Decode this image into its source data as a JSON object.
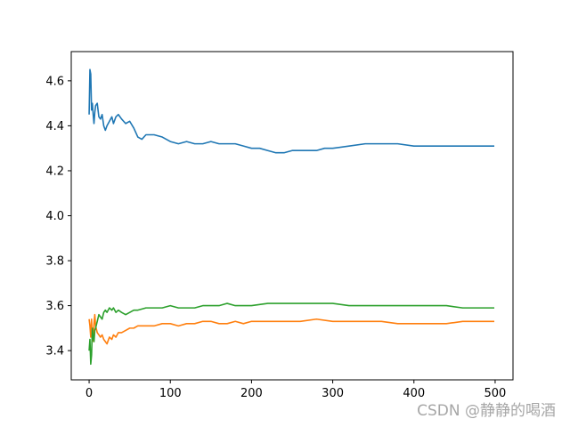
{
  "chart_data": {
    "type": "line",
    "title": "",
    "xlabel": "",
    "ylabel": "",
    "xlim": [
      -22,
      522
    ],
    "ylim": [
      3.27,
      4.73
    ],
    "xticks": [
      0,
      100,
      200,
      300,
      400,
      500
    ],
    "yticks": [
      3.4,
      3.6,
      3.8,
      4.0,
      4.2,
      4.4,
      4.6
    ],
    "xtick_labels": [
      "0",
      "100",
      "200",
      "300",
      "400",
      "500"
    ],
    "ytick_labels": [
      "3.4",
      "3.6",
      "3.8",
      "4.0",
      "4.2",
      "4.4",
      "4.6"
    ],
    "grid": false,
    "legend": "none",
    "series": [
      {
        "color": "#1f77b4",
        "x": [
          0,
          1,
          2,
          3,
          4,
          5,
          6,
          7,
          8,
          10,
          12,
          14,
          16,
          18,
          20,
          22,
          25,
          28,
          30,
          33,
          36,
          40,
          45,
          50,
          55,
          60,
          65,
          70,
          80,
          90,
          100,
          110,
          120,
          130,
          140,
          150,
          160,
          170,
          180,
          190,
          200,
          210,
          220,
          230,
          240,
          250,
          260,
          270,
          280,
          290,
          300,
          320,
          340,
          360,
          380,
          400,
          420,
          440,
          460,
          480,
          499
        ],
        "y": [
          4.45,
          4.65,
          4.63,
          4.47,
          4.5,
          4.45,
          4.41,
          4.46,
          4.49,
          4.5,
          4.44,
          4.43,
          4.45,
          4.4,
          4.38,
          4.4,
          4.42,
          4.44,
          4.41,
          4.44,
          4.45,
          4.43,
          4.41,
          4.42,
          4.39,
          4.35,
          4.34,
          4.36,
          4.36,
          4.35,
          4.33,
          4.32,
          4.33,
          4.32,
          4.32,
          4.33,
          4.32,
          4.32,
          4.32,
          4.31,
          4.3,
          4.3,
          4.29,
          4.28,
          4.28,
          4.29,
          4.29,
          4.29,
          4.29,
          4.3,
          4.3,
          4.31,
          4.32,
          4.32,
          4.32,
          4.31,
          4.31,
          4.31,
          4.31,
          4.31,
          4.31
        ]
      },
      {
        "color": "#ff7f0e",
        "x": [
          0,
          1,
          2,
          3,
          4,
          5,
          6,
          7,
          8,
          10,
          12,
          14,
          16,
          18,
          20,
          22,
          25,
          28,
          30,
          33,
          36,
          40,
          45,
          50,
          55,
          60,
          70,
          80,
          90,
          100,
          110,
          120,
          130,
          140,
          150,
          160,
          170,
          180,
          190,
          200,
          220,
          240,
          260,
          280,
          300,
          320,
          340,
          360,
          380,
          400,
          420,
          440,
          460,
          480,
          499
        ],
        "y": [
          3.54,
          3.51,
          3.46,
          3.54,
          3.44,
          3.45,
          3.52,
          3.56,
          3.51,
          3.48,
          3.47,
          3.46,
          3.47,
          3.45,
          3.44,
          3.43,
          3.46,
          3.45,
          3.47,
          3.46,
          3.48,
          3.48,
          3.49,
          3.5,
          3.5,
          3.51,
          3.51,
          3.51,
          3.52,
          3.52,
          3.51,
          3.52,
          3.52,
          3.53,
          3.53,
          3.52,
          3.52,
          3.53,
          3.52,
          3.53,
          3.53,
          3.53,
          3.53,
          3.54,
          3.53,
          3.53,
          3.53,
          3.53,
          3.52,
          3.52,
          3.52,
          3.52,
          3.53,
          3.53,
          3.53
        ]
      },
      {
        "color": "#2ca02c",
        "x": [
          0,
          1,
          2,
          3,
          4,
          5,
          6,
          7,
          8,
          10,
          12,
          14,
          16,
          18,
          20,
          22,
          25,
          28,
          30,
          33,
          36,
          40,
          45,
          50,
          55,
          60,
          70,
          80,
          90,
          100,
          110,
          120,
          130,
          140,
          150,
          160,
          170,
          180,
          190,
          200,
          220,
          240,
          260,
          280,
          300,
          320,
          340,
          360,
          380,
          400,
          420,
          440,
          460,
          480,
          499
        ],
        "y": [
          3.4,
          3.45,
          3.34,
          3.38,
          3.5,
          3.46,
          3.44,
          3.49,
          3.5,
          3.53,
          3.56,
          3.55,
          3.54,
          3.57,
          3.58,
          3.57,
          3.59,
          3.58,
          3.59,
          3.57,
          3.58,
          3.57,
          3.56,
          3.57,
          3.58,
          3.58,
          3.59,
          3.59,
          3.59,
          3.6,
          3.59,
          3.59,
          3.59,
          3.6,
          3.6,
          3.6,
          3.61,
          3.6,
          3.6,
          3.6,
          3.61,
          3.61,
          3.61,
          3.61,
          3.61,
          3.6,
          3.6,
          3.6,
          3.6,
          3.6,
          3.6,
          3.6,
          3.59,
          3.59,
          3.59
        ]
      }
    ]
  },
  "watermark": "CSDN @静静的喝酒"
}
